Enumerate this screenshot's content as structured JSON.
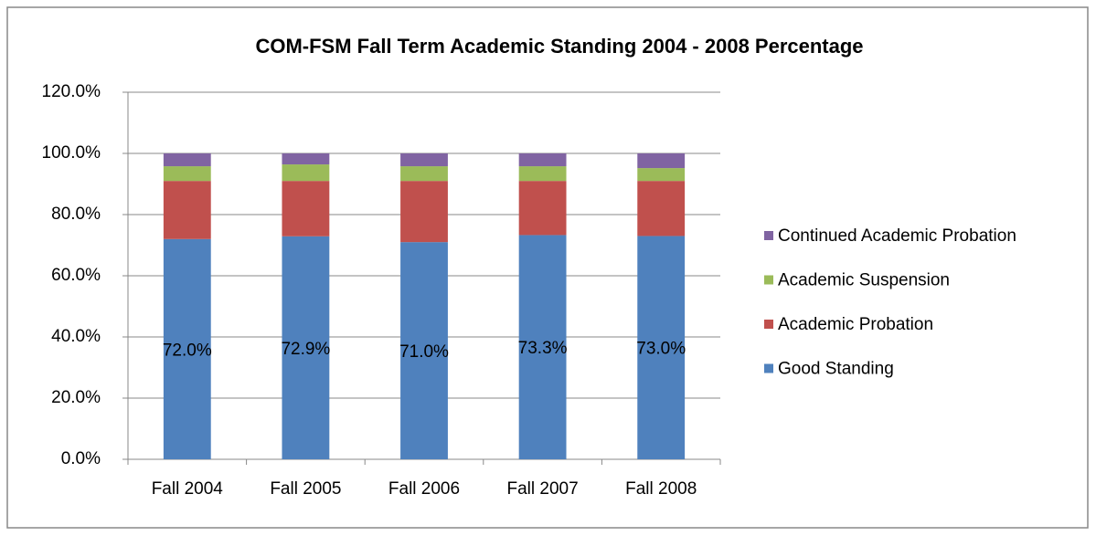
{
  "chart_data": {
    "type": "stacked_bar",
    "title": "COM-FSM Fall Term Academic Standing 2004 - 2008 Percentage",
    "categories": [
      "Fall 2004",
      "Fall 2005",
      "Fall 2006",
      "Fall 2007",
      "Fall 2008"
    ],
    "series": [
      {
        "name": "Good Standing",
        "color": "#4f81bd",
        "values": [
          72.0,
          72.9,
          71.0,
          73.3,
          73.0
        ],
        "value_labels": [
          "72.0%",
          "72.9%",
          "71.0%",
          "73.3%",
          "73.0%"
        ]
      },
      {
        "name": "Academic Probation",
        "color": "#c0504d",
        "values": [
          19.0,
          18.1,
          20.0,
          17.7,
          18.0
        ]
      },
      {
        "name": "Academic Suspension",
        "color": "#9bbb59",
        "values": [
          4.8,
          5.4,
          4.8,
          4.8,
          4.2
        ]
      },
      {
        "name": "Continued Academic Probation",
        "color": "#8064a2",
        "values": [
          4.2,
          3.6,
          4.2,
          4.2,
          4.8
        ]
      }
    ],
    "ylim": [
      0,
      120
    ],
    "yticks": [
      {
        "value": 0,
        "label": "0.0%"
      },
      {
        "value": 20,
        "label": "20.0%"
      },
      {
        "value": 40,
        "label": "40.0%"
      },
      {
        "value": 60,
        "label": "60.0%"
      },
      {
        "value": 80,
        "label": "80.0%"
      },
      {
        "value": 100,
        "label": "100.0%"
      },
      {
        "value": 120,
        "label": "120.0%"
      }
    ],
    "grid": true,
    "legend": "right"
  }
}
